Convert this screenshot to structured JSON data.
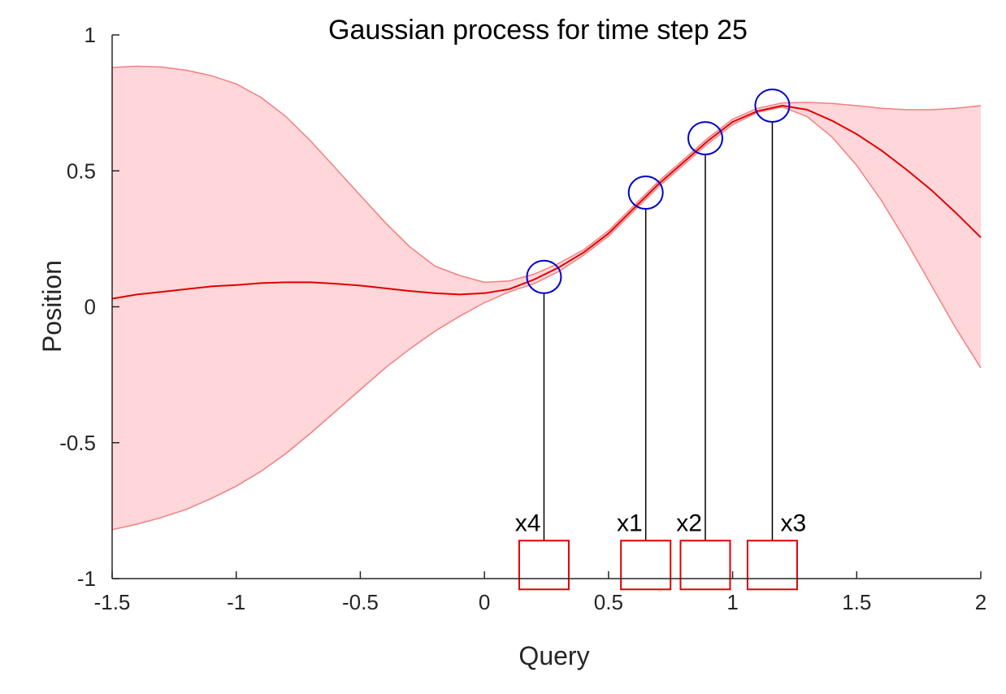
{
  "chart_data": {
    "type": "line",
    "title": "Gaussian process for time step 25",
    "xlabel": "Query",
    "ylabel": "Position",
    "xlim": [
      -1.5,
      2
    ],
    "ylim": [
      -1,
      1
    ],
    "xticks": [
      -1.5,
      -1,
      -0.5,
      0,
      0.5,
      1,
      1.5,
      2
    ],
    "xtick_labels": [
      "-1.5",
      "-1",
      "-0.5",
      "0",
      "0.5",
      "1",
      "1.5",
      "2"
    ],
    "yticks": [
      -1,
      -0.5,
      0,
      0.5,
      1
    ],
    "ytick_labels": [
      "-1",
      "-0.5",
      "0",
      "0.5",
      "1"
    ],
    "grid": false,
    "x": [
      -1.5,
      -1.4,
      -1.3,
      -1.2,
      -1.1,
      -1.0,
      -0.9,
      -0.8,
      -0.7,
      -0.6,
      -0.5,
      -0.4,
      -0.3,
      -0.2,
      -0.1,
      0.0,
      0.1,
      0.2,
      0.3,
      0.4,
      0.5,
      0.6,
      0.7,
      0.8,
      0.9,
      1.0,
      1.1,
      1.2,
      1.3,
      1.4,
      1.5,
      1.6,
      1.7,
      1.8,
      1.9,
      2.0
    ],
    "mean": [
      0.03,
      0.045,
      0.055,
      0.065,
      0.075,
      0.08,
      0.087,
      0.09,
      0.09,
      0.085,
      0.078,
      0.068,
      0.058,
      0.05,
      0.045,
      0.05,
      0.065,
      0.1,
      0.145,
      0.2,
      0.27,
      0.36,
      0.45,
      0.53,
      0.61,
      0.68,
      0.72,
      0.74,
      0.725,
      0.685,
      0.635,
      0.575,
      0.505,
      0.43,
      0.345,
      0.255
    ],
    "upper": [
      0.88,
      0.885,
      0.882,
      0.87,
      0.85,
      0.82,
      0.77,
      0.7,
      0.61,
      0.51,
      0.41,
      0.31,
      0.22,
      0.15,
      0.115,
      0.09,
      0.095,
      0.12,
      0.16,
      0.21,
      0.28,
      0.37,
      0.46,
      0.54,
      0.62,
      0.69,
      0.73,
      0.75,
      0.752,
      0.748,
      0.74,
      0.73,
      0.725,
      0.725,
      0.73,
      0.74
    ],
    "lower": [
      -0.82,
      -0.8,
      -0.775,
      -0.745,
      -0.705,
      -0.66,
      -0.605,
      -0.54,
      -0.465,
      -0.385,
      -0.305,
      -0.225,
      -0.155,
      -0.09,
      -0.035,
      0.015,
      0.055,
      0.085,
      0.13,
      0.19,
      0.26,
      0.35,
      0.44,
      0.52,
      0.6,
      0.67,
      0.715,
      0.735,
      0.7,
      0.625,
      0.52,
      0.39,
      0.24,
      0.08,
      -0.08,
      -0.225
    ],
    "observations": [
      {
        "label": "x4",
        "x": 0.24,
        "y": 0.11
      },
      {
        "label": "x1",
        "x": 0.65,
        "y": 0.42
      },
      {
        "label": "x2",
        "x": 0.89,
        "y": 0.62
      },
      {
        "label": "x3",
        "x": 1.16,
        "y": 0.74
      }
    ],
    "box_y": -0.95,
    "colors": {
      "band_fill": "#ffd6d9",
      "band_edge": "#f08080",
      "mean_line": "#e00000",
      "marker": "#0000cc",
      "box": "#e00000",
      "stem": "#000000"
    }
  }
}
